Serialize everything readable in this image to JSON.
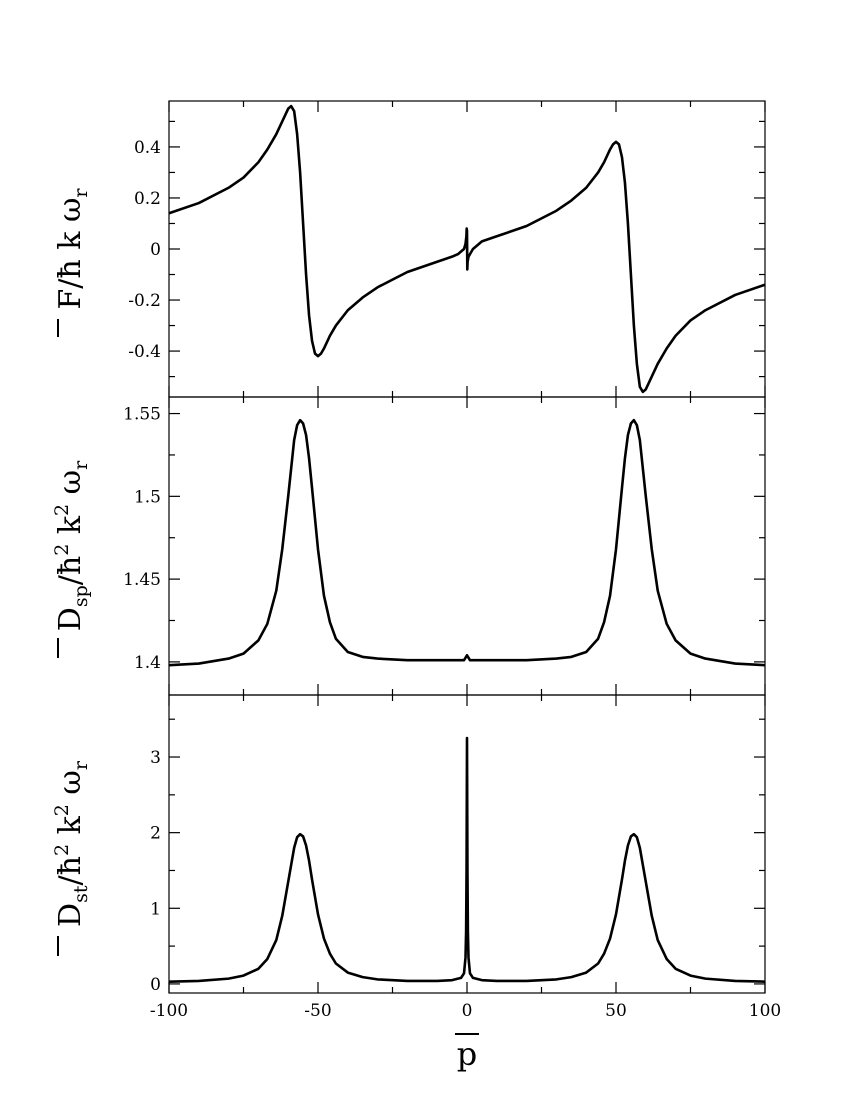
{
  "chart_data": {
    "type": "line",
    "x_axis": {
      "label": "p",
      "range": [
        -100,
        100
      ],
      "ticks": [
        -100,
        -50,
        0,
        50,
        100
      ],
      "tick_labels": [
        "-100",
        "-50",
        "0",
        "50",
        "100"
      ]
    },
    "panels": [
      {
        "id": "force",
        "ylabel": {
          "main": "F",
          "rest": "/ħ k ω",
          "sub": "r",
          "sup": ""
        },
        "ylim": [
          -0.58,
          0.58
        ],
        "yticks": [
          -0.4,
          -0.2,
          0,
          0.2,
          0.4
        ],
        "ytick_labels": [
          "-0.4",
          "-0.2",
          "0",
          "0.2",
          "0.4"
        ],
        "series": [
          {
            "x": [
              -100,
              -90,
              -80,
              -75,
              -70,
              -67,
              -64,
              -62,
              -60,
              -59,
              -58,
              -57,
              -56,
              -55,
              -54,
              -53,
              -52,
              -51,
              -50,
              -49,
              -48,
              -46,
              -44,
              -40,
              -35,
              -30,
              -25,
              -20,
              -15,
              -10,
              -5,
              -3,
              -2,
              -1,
              -0.5,
              -0.2,
              -0.1,
              0,
              0.1,
              0.2,
              0.5,
              1,
              2,
              3,
              5,
              10,
              15,
              20,
              25,
              30,
              35,
              40,
              44,
              46,
              48,
              49,
              50,
              51,
              52,
              53,
              54,
              55,
              56,
              57,
              58,
              59,
              60,
              62,
              64,
              67,
              70,
              75,
              80,
              90,
              100
            ],
            "y": [
              0.14,
              0.18,
              0.24,
              0.28,
              0.34,
              0.39,
              0.45,
              0.5,
              0.55,
              0.56,
              0.54,
              0.45,
              0.3,
              0.1,
              -0.1,
              -0.26,
              -0.36,
              -0.41,
              -0.42,
              -0.41,
              -0.39,
              -0.34,
              -0.3,
              -0.24,
              -0.19,
              -0.15,
              -0.12,
              -0.09,
              -0.07,
              -0.05,
              -0.03,
              -0.02,
              -0.01,
              0,
              0.02,
              0.05,
              0.08,
              0.07,
              -0.08,
              -0.05,
              -0.03,
              -0.02,
              0,
              0.01,
              0.03,
              0.05,
              0.07,
              0.09,
              0.12,
              0.15,
              0.19,
              0.24,
              0.3,
              0.34,
              0.39,
              0.41,
              0.42,
              0.41,
              0.36,
              0.26,
              0.1,
              -0.1,
              -0.3,
              -0.45,
              -0.54,
              -0.56,
              -0.55,
              -0.5,
              -0.45,
              -0.39,
              -0.34,
              -0.28,
              -0.24,
              -0.18,
              -0.14
            ]
          }
        ]
      },
      {
        "id": "spont",
        "ylabel": {
          "main": "D",
          "rest": "/ħ k ω",
          "sub": "sp",
          "sup": "2"
        },
        "ylim": [
          1.38,
          1.56
        ],
        "yticks": [
          1.4,
          1.45,
          1.5,
          1.55
        ],
        "ytick_labels": [
          "1.4",
          "1.45",
          "1.5",
          "1.55"
        ],
        "series": [
          {
            "x": [
              -100,
              -90,
              -80,
              -75,
              -70,
              -67,
              -64,
              -62,
              -60,
              -58,
              -57,
              -56,
              -55,
              -54,
              -53,
              -52,
              -50,
              -48,
              -46,
              -44,
              -40,
              -35,
              -30,
              -20,
              -10,
              -1,
              0,
              1,
              10,
              20,
              30,
              35,
              40,
              44,
              46,
              48,
              50,
              52,
              53,
              54,
              55,
              56,
              57,
              58,
              60,
              62,
              64,
              67,
              70,
              75,
              80,
              90,
              100
            ],
            "y": [
              1.398,
              1.399,
              1.402,
              1.405,
              1.413,
              1.423,
              1.443,
              1.468,
              1.5,
              1.534,
              1.543,
              1.546,
              1.544,
              1.537,
              1.523,
              1.505,
              1.468,
              1.44,
              1.424,
              1.414,
              1.406,
              1.403,
              1.402,
              1.401,
              1.401,
              1.401,
              1.404,
              1.401,
              1.401,
              1.401,
              1.402,
              1.403,
              1.406,
              1.414,
              1.424,
              1.44,
              1.468,
              1.505,
              1.523,
              1.537,
              1.544,
              1.546,
              1.543,
              1.534,
              1.5,
              1.468,
              1.443,
              1.423,
              1.413,
              1.405,
              1.402,
              1.399,
              1.398
            ]
          }
        ]
      },
      {
        "id": "stim",
        "ylabel": {
          "main": "D",
          "rest": "/ħ k ω",
          "sub": "st",
          "sup": "2"
        },
        "ylim": [
          -0.12,
          3.82
        ],
        "yticks": [
          0,
          1,
          2,
          3
        ],
        "ytick_labels": [
          "0",
          "1",
          "2",
          "3"
        ],
        "series": [
          {
            "x": [
              -100,
              -90,
              -80,
              -75,
              -70,
              -67,
              -64,
              -62,
              -60,
              -58,
              -57,
              -56,
              -55,
              -54,
              -53,
              -52,
              -50,
              -48,
              -46,
              -44,
              -40,
              -35,
              -30,
              -20,
              -10,
              -5,
              -2,
              -1,
              -0.5,
              -0.3,
              -0.15,
              0,
              0.15,
              0.3,
              0.5,
              1,
              2,
              5,
              10,
              20,
              30,
              35,
              40,
              44,
              46,
              48,
              50,
              52,
              53,
              54,
              55,
              56,
              57,
              58,
              60,
              62,
              64,
              67,
              70,
              75,
              80,
              90,
              100
            ],
            "y": [
              0.03,
              0.04,
              0.07,
              0.11,
              0.2,
              0.33,
              0.58,
              0.9,
              1.35,
              1.8,
              1.94,
              1.98,
              1.95,
              1.83,
              1.63,
              1.38,
              0.92,
              0.6,
              0.4,
              0.27,
              0.15,
              0.09,
              0.06,
              0.04,
              0.04,
              0.05,
              0.08,
              0.14,
              0.35,
              0.7,
              1.5,
              3.25,
              1.5,
              0.7,
              0.35,
              0.14,
              0.08,
              0.05,
              0.04,
              0.04,
              0.06,
              0.09,
              0.15,
              0.27,
              0.4,
              0.6,
              0.92,
              1.38,
              1.63,
              1.83,
              1.95,
              1.98,
              1.94,
              1.8,
              1.35,
              0.9,
              0.58,
              0.33,
              0.2,
              0.11,
              0.07,
              0.04,
              0.03
            ]
          }
        ]
      }
    ]
  }
}
